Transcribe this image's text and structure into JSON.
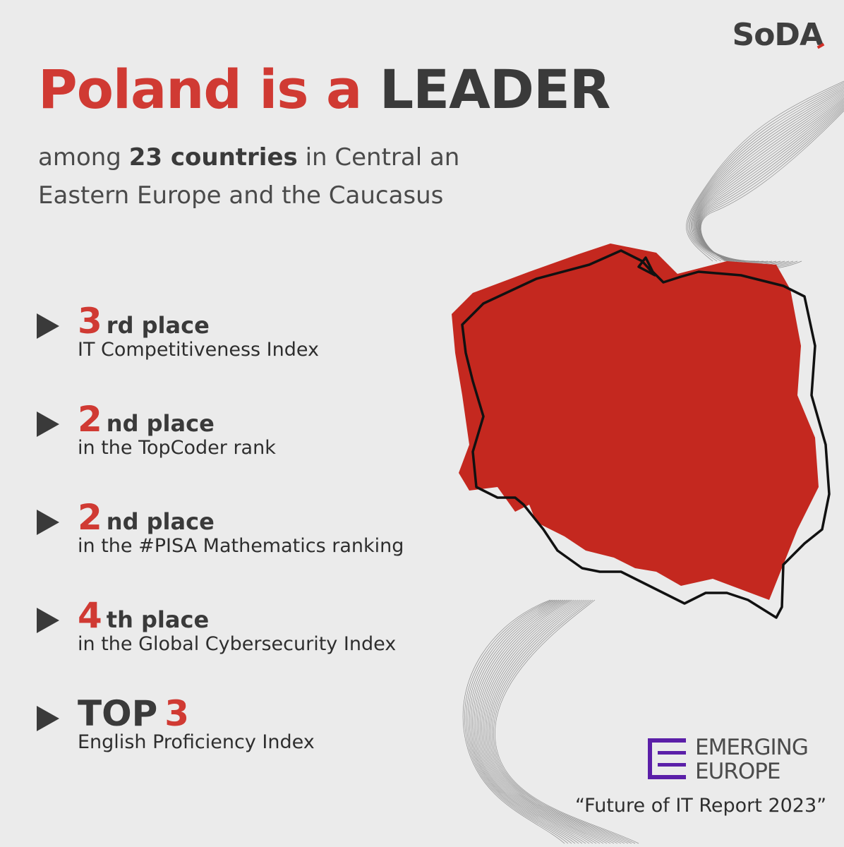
{
  "brand": {
    "logo": "SoDA"
  },
  "headline": {
    "part1": "Poland is a",
    "part2": "LEADER"
  },
  "subtitle": {
    "pre": "among",
    "bold": "23 countries",
    "post": "in Central an",
    "line2": "Eastern Europe and the Caucasus"
  },
  "items": [
    {
      "num": "3",
      "suffix": "rd place",
      "desc": "IT Competitiveness Index"
    },
    {
      "num": "2",
      "suffix": "nd place",
      "desc": "in the TopCoder rank"
    },
    {
      "num": "2",
      "suffix": "nd place",
      "desc": "in the #PISA Mathematics ranking"
    },
    {
      "num": "4",
      "suffix": "th place",
      "desc": "in the Global Cybersecurity Index"
    },
    {
      "top": "TOP",
      "num": "3",
      "desc": "English Proficiency Index"
    }
  ],
  "partner": {
    "line1": "EMERGING",
    "line2": "EUROPE"
  },
  "report": "“Future of IT Report 2023”",
  "colors": {
    "accent": "#d03a33",
    "dark": "#3a3a3a",
    "partner": "#5b1fa8",
    "background": "#ebebeb"
  },
  "icons": {
    "bullet": "play-triangle-icon",
    "map": "poland-map-icon"
  }
}
